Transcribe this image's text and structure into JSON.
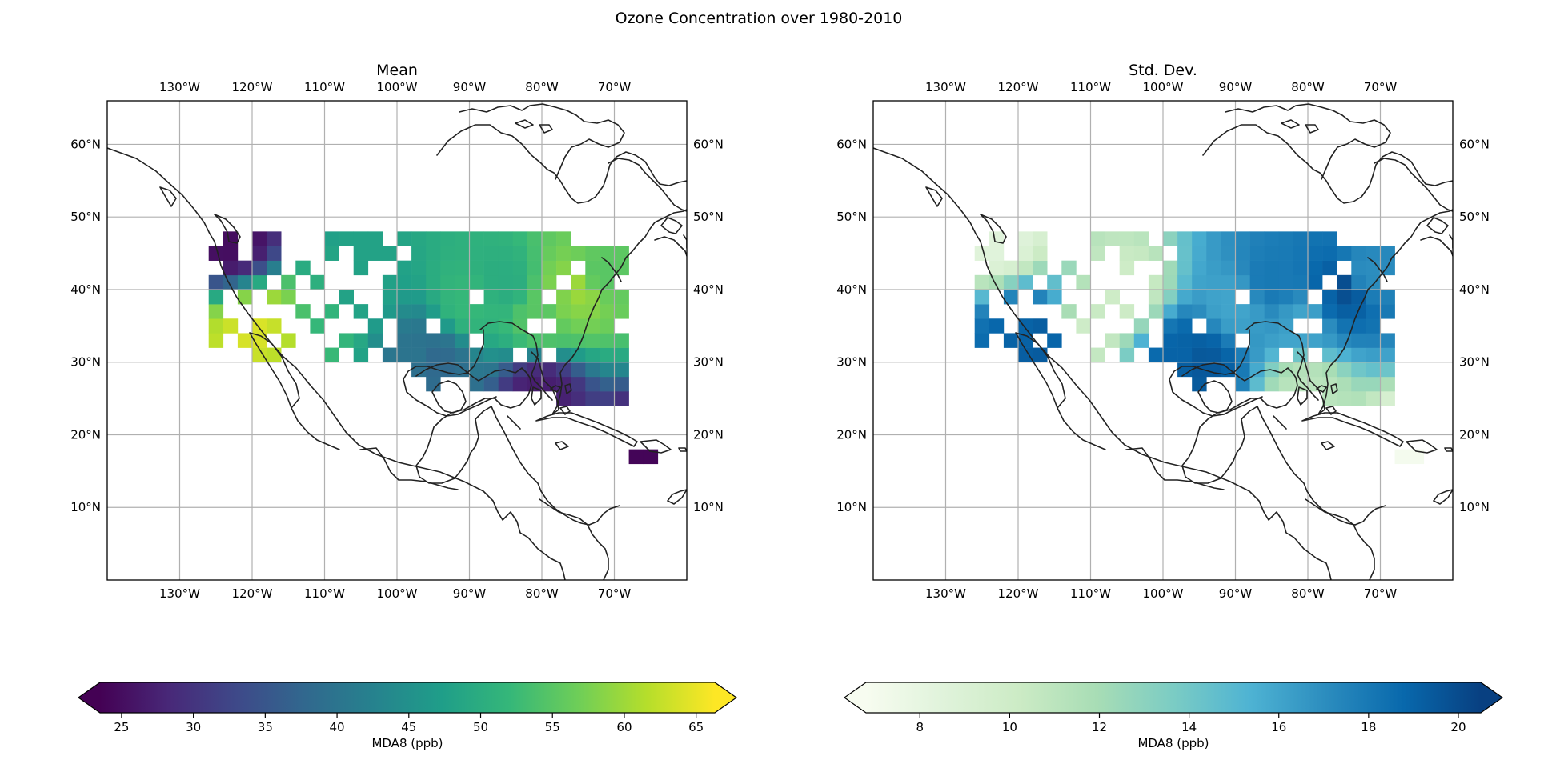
{
  "figure": {
    "title": "Ozone Concentration over 1980-2010"
  },
  "panels": [
    {
      "id": "mean",
      "title": "Mean",
      "colormap": "viridis",
      "colors": [
        "#440154",
        "#482878",
        "#3e4989",
        "#31688e",
        "#26828e",
        "#1f9e89",
        "#35b779",
        "#6ece58",
        "#b5de2b",
        "#fde725"
      ]
    },
    {
      "id": "std",
      "title": "Std. Dev.",
      "colormap": "GnBu",
      "colors": [
        "#f7fcf0",
        "#e0f3db",
        "#ccebc5",
        "#a8ddb5",
        "#7bccc4",
        "#4eb3d3",
        "#2b8cbe",
        "#0868ac",
        "#084081"
      ]
    }
  ],
  "axes": {
    "lon_ticks": [
      -130,
      -120,
      -110,
      -100,
      -90,
      -80,
      -70
    ],
    "lon_labels": [
      "130°W",
      "120°W",
      "110°W",
      "100°W",
      "90°W",
      "80°W",
      "70°W"
    ],
    "lat_ticks": [
      10,
      20,
      30,
      40,
      50,
      60
    ],
    "lat_labels": [
      "10°N",
      "20°N",
      "30°N",
      "40°N",
      "50°N",
      "60°N"
    ],
    "extent": {
      "lon_min": -140,
      "lon_max": -60,
      "lat_min": 0,
      "lat_max": 66
    },
    "gridlines": true
  },
  "colorbars": [
    {
      "panel": "mean",
      "label": "MDA8 (ppb)",
      "vmin": 23.5,
      "vmax": 66.3,
      "ticks": [
        25,
        30,
        35,
        40,
        45,
        50,
        55,
        60,
        65
      ],
      "tick_labels": [
        "25",
        "30",
        "35",
        "40",
        "45",
        "50",
        "55",
        "60",
        "65"
      ],
      "extend": "both"
    },
    {
      "panel": "std",
      "label": "MDA8 (ppb)",
      "vmin": 6.8,
      "vmax": 20.5,
      "ticks": [
        8,
        10,
        12,
        14,
        16,
        18,
        20
      ],
      "tick_labels": [
        "8",
        "10",
        "12",
        "14",
        "16",
        "18",
        "20"
      ],
      "extend": "both"
    }
  ],
  "chart_data": {
    "type": "heatmap",
    "grid_resolution_deg": 2,
    "mean_range_ppb": [
      23.5,
      66.3
    ],
    "std_range_ppb": [
      6.8,
      20.5
    ],
    "sample_cells": [
      {
        "lon": -123,
        "lat": 47,
        "mean": 25,
        "std": 8.5
      },
      {
        "lon": -119,
        "lat": 34,
        "mean": 64,
        "std": 19
      },
      {
        "lon": -117,
        "lat": 33,
        "mean": 62,
        "std": 19.5
      },
      {
        "lon": -111,
        "lat": 34,
        "mean": 52,
        "std": 10
      },
      {
        "lon": -105,
        "lat": 40,
        "mean": 48,
        "std": 10
      },
      {
        "lon": -97,
        "lat": 31,
        "mean": 40,
        "std": 19
      },
      {
        "lon": -95,
        "lat": 30,
        "mean": 38,
        "std": 19.5
      },
      {
        "lon": -90,
        "lat": 38,
        "mean": 52,
        "std": 16
      },
      {
        "lon": -85,
        "lat": 41,
        "mean": 50,
        "std": 18
      },
      {
        "lon": -80,
        "lat": 26,
        "mean": 27,
        "std": 11
      },
      {
        "lon": -80,
        "lat": 36,
        "mean": 55,
        "std": 16
      },
      {
        "lon": -77,
        "lat": 39,
        "mean": 58,
        "std": 19
      },
      {
        "lon": -75,
        "lat": 40,
        "mean": 60,
        "std": 20
      },
      {
        "lon": -72,
        "lat": 42,
        "mean": 55,
        "std": 17
      },
      {
        "lon": -66,
        "lat": 18,
        "mean": 24,
        "std": 7
      }
    ]
  }
}
